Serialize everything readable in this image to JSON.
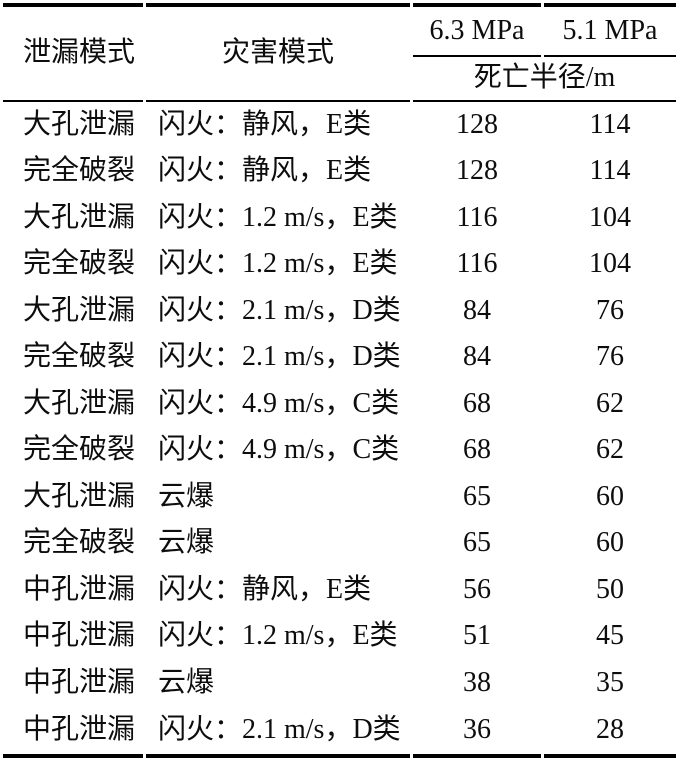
{
  "colors": {
    "text": "#0d0d0d",
    "rule": "#000000",
    "background": "#ffffff"
  },
  "table": {
    "headers": {
      "leak_mode": "泄漏模式",
      "hazard_mode": "灾害模式",
      "pressure_1": "6.3 MPa",
      "pressure_2": "5.1 MPa",
      "radius_label": "死亡半径/m"
    },
    "rows": [
      {
        "leak": "大孔泄漏",
        "hazard": "闪火：静风，E类",
        "p1": "128",
        "p2": "114"
      },
      {
        "leak": "完全破裂",
        "hazard": "闪火：静风，E类",
        "p1": "128",
        "p2": "114"
      },
      {
        "leak": "大孔泄漏",
        "hazard": "闪火：1.2 m/s，E类",
        "p1": "116",
        "p2": "104"
      },
      {
        "leak": "完全破裂",
        "hazard": "闪火：1.2 m/s，E类",
        "p1": "116",
        "p2": "104"
      },
      {
        "leak": "大孔泄漏",
        "hazard": "闪火：2.1 m/s，D类",
        "p1": "84",
        "p2": "76"
      },
      {
        "leak": "完全破裂",
        "hazard": "闪火：2.1 m/s，D类",
        "p1": "84",
        "p2": "76"
      },
      {
        "leak": "大孔泄漏",
        "hazard": "闪火：4.9 m/s，C类",
        "p1": "68",
        "p2": "62"
      },
      {
        "leak": "完全破裂",
        "hazard": "闪火：4.9 m/s，C类",
        "p1": "68",
        "p2": "62"
      },
      {
        "leak": "大孔泄漏",
        "hazard": "云爆",
        "p1": "65",
        "p2": "60"
      },
      {
        "leak": "完全破裂",
        "hazard": "云爆",
        "p1": "65",
        "p2": "60"
      },
      {
        "leak": "中孔泄漏",
        "hazard": "闪火：静风，E类",
        "p1": "56",
        "p2": "50"
      },
      {
        "leak": "中孔泄漏",
        "hazard": "闪火：1.2 m/s，E类",
        "p1": "51",
        "p2": "45"
      },
      {
        "leak": "中孔泄漏",
        "hazard": "云爆",
        "p1": "38",
        "p2": "35"
      },
      {
        "leak": "中孔泄漏",
        "hazard": "闪火：2.1 m/s，D类",
        "p1": "36",
        "p2": "28"
      }
    ]
  }
}
